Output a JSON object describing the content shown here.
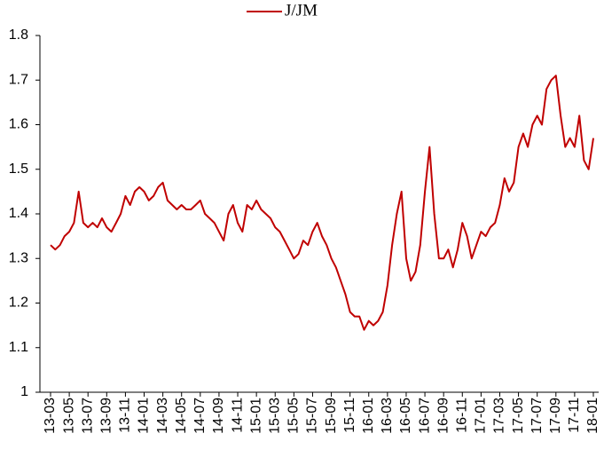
{
  "chart_data": {
    "type": "line",
    "categories": [
      "13-03",
      null,
      null,
      null,
      "13-05",
      null,
      null,
      null,
      "13-07",
      null,
      null,
      null,
      "13-09",
      null,
      null,
      null,
      "13-11",
      null,
      null,
      null,
      "14-01",
      null,
      null,
      null,
      "14-03",
      null,
      null,
      null,
      "14-05",
      null,
      null,
      null,
      "14-07",
      null,
      null,
      null,
      "14-09",
      null,
      null,
      null,
      "14-11",
      null,
      null,
      null,
      "15-01",
      null,
      null,
      null,
      "15-03",
      null,
      null,
      null,
      "15-05",
      null,
      null,
      null,
      "15-07",
      null,
      null,
      null,
      "15-09",
      null,
      null,
      null,
      "15-11",
      null,
      null,
      null,
      "16-01",
      null,
      null,
      null,
      "16-03",
      null,
      null,
      null,
      "16-05",
      null,
      null,
      null,
      "16-07",
      null,
      null,
      null,
      "16-09",
      null,
      null,
      null,
      "16-11",
      null,
      null,
      null,
      "17-01",
      null,
      null,
      null,
      "17-03",
      null,
      null,
      null,
      "17-05",
      null,
      null,
      null,
      "17-07",
      null,
      null,
      null,
      "17-09",
      null,
      null,
      null,
      "17-11",
      null,
      null,
      null,
      "18-01"
    ],
    "series": [
      {
        "name": "J/JM",
        "color": "#c00000",
        "values": [
          1.33,
          1.32,
          1.33,
          1.35,
          1.36,
          1.38,
          1.45,
          1.38,
          1.37,
          1.38,
          1.37,
          1.39,
          1.37,
          1.36,
          1.38,
          1.4,
          1.44,
          1.42,
          1.45,
          1.46,
          1.45,
          1.43,
          1.44,
          1.46,
          1.47,
          1.43,
          1.42,
          1.41,
          1.42,
          1.41,
          1.41,
          1.42,
          1.43,
          1.4,
          1.39,
          1.38,
          1.36,
          1.34,
          1.4,
          1.42,
          1.38,
          1.36,
          1.42,
          1.41,
          1.43,
          1.41,
          1.4,
          1.39,
          1.37,
          1.36,
          1.34,
          1.32,
          1.3,
          1.31,
          1.34,
          1.33,
          1.36,
          1.38,
          1.35,
          1.33,
          1.3,
          1.28,
          1.25,
          1.22,
          1.18,
          1.17,
          1.17,
          1.14,
          1.16,
          1.15,
          1.16,
          1.18,
          1.24,
          1.33,
          1.4,
          1.45,
          1.3,
          1.25,
          1.27,
          1.33,
          1.45,
          1.55,
          1.4,
          1.3,
          1.3,
          1.32,
          1.28,
          1.32,
          1.38,
          1.35,
          1.3,
          1.33,
          1.36,
          1.35,
          1.37,
          1.38,
          1.42,
          1.48,
          1.45,
          1.47,
          1.55,
          1.58,
          1.55,
          1.6,
          1.62,
          1.6,
          1.68,
          1.7,
          1.71,
          1.62,
          1.55,
          1.57,
          1.55,
          1.62,
          1.52,
          1.5,
          1.57
        ]
      }
    ],
    "ylim": [
      1,
      1.8
    ],
    "yticks": [
      1,
      1.1,
      1.2,
      1.3,
      1.4,
      1.5,
      1.6,
      1.7,
      1.8
    ]
  }
}
